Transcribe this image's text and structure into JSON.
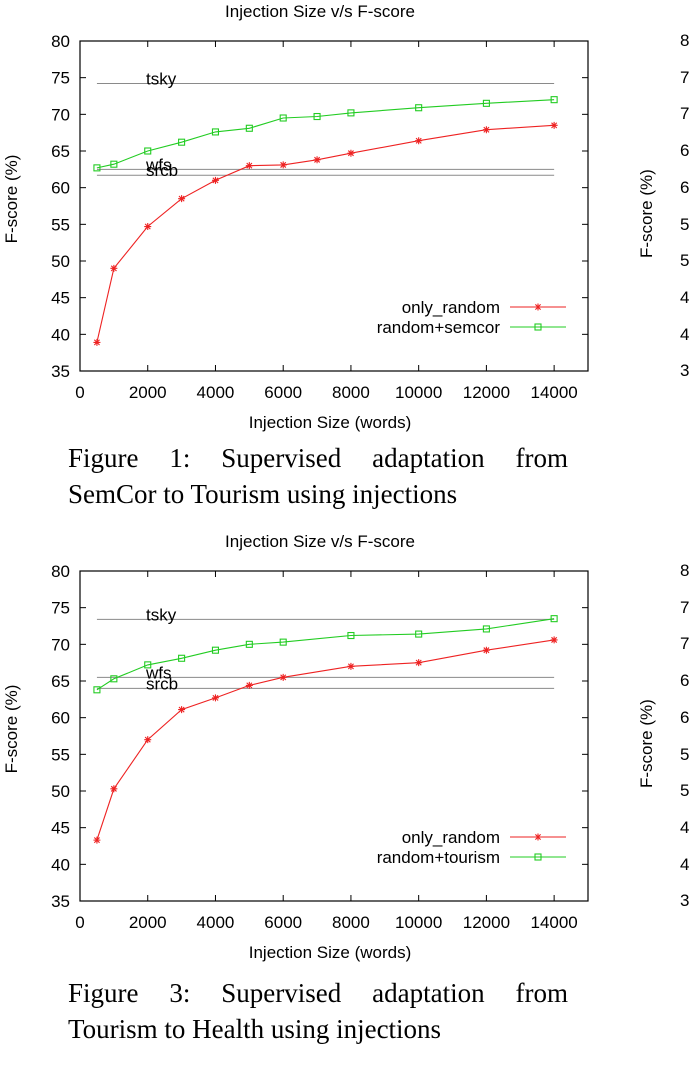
{
  "chart_data": [
    {
      "type": "line",
      "title": "Injection Size v/s F-score",
      "xlabel": "Injection Size (words)",
      "ylabel": "F-score (%)",
      "xlim": [
        0,
        15000
      ],
      "ylim": [
        35,
        80
      ],
      "xticks": [
        0,
        2000,
        4000,
        6000,
        8000,
        10000,
        12000,
        14000
      ],
      "yticks": [
        35,
        40,
        45,
        50,
        55,
        60,
        65,
        70,
        75,
        80
      ],
      "grid": false,
      "legend": "bottom-right",
      "baselines": [
        {
          "name": "tsky",
          "value": 74.2
        },
        {
          "name": "wfs",
          "value": 62.5
        },
        {
          "name": "srcb",
          "value": 61.7
        }
      ],
      "series": [
        {
          "name": "only_random",
          "color": "#ee2222",
          "marker": "star",
          "x": [
            500,
            1000,
            2000,
            3000,
            4000,
            5000,
            6000,
            7000,
            8000,
            10000,
            12000,
            14000
          ],
          "values": [
            38.9,
            49.0,
            54.7,
            58.5,
            61.0,
            63.0,
            63.1,
            63.8,
            64.7,
            66.4,
            67.9,
            68.5
          ]
        },
        {
          "name": "random+semcor",
          "color": "#22cc22",
          "marker": "square",
          "x": [
            500,
            1000,
            2000,
            3000,
            4000,
            5000,
            6000,
            7000,
            8000,
            10000,
            12000,
            14000
          ],
          "values": [
            62.7,
            63.2,
            65.0,
            66.2,
            67.6,
            68.1,
            69.5,
            69.7,
            70.2,
            70.9,
            71.5,
            72.0
          ]
        }
      ]
    },
    {
      "type": "line",
      "title": "Injection Size v/s F-score",
      "xlabel": "Injection Size (words)",
      "ylabel": "F-score (%)",
      "xlim": [
        0,
        15000
      ],
      "ylim": [
        35,
        80
      ],
      "xticks": [
        0,
        2000,
        4000,
        6000,
        8000,
        10000,
        12000,
        14000
      ],
      "yticks": [
        35,
        40,
        45,
        50,
        55,
        60,
        65,
        70,
        75,
        80
      ],
      "grid": false,
      "legend": "bottom-right",
      "baselines": [
        {
          "name": "tsky",
          "value": 73.4
        },
        {
          "name": "wfs",
          "value": 65.5
        },
        {
          "name": "srcb",
          "value": 64.0
        }
      ],
      "series": [
        {
          "name": "only_random",
          "color": "#ee2222",
          "marker": "star",
          "x": [
            500,
            1000,
            2000,
            3000,
            4000,
            5000,
            6000,
            8000,
            10000,
            12000,
            14000
          ],
          "values": [
            43.3,
            50.3,
            57.0,
            61.1,
            62.7,
            64.4,
            65.5,
            67.0,
            67.5,
            69.2,
            70.6
          ]
        },
        {
          "name": "random+tourism",
          "color": "#22cc22",
          "marker": "square",
          "x": [
            500,
            1000,
            2000,
            3000,
            4000,
            5000,
            6000,
            8000,
            10000,
            12000,
            14000
          ],
          "values": [
            63.8,
            65.3,
            67.2,
            68.1,
            69.2,
            70.0,
            70.3,
            71.2,
            71.4,
            72.1,
            73.5
          ]
        }
      ]
    }
  ],
  "captions": [
    {
      "line1": "Figure 1: Supervised adaptation from",
      "line2": "SemCor to Tourism using injections"
    },
    {
      "line1": "Figure 3: Supervised adaptation from",
      "line2": "Tourism to Health using injections"
    }
  ],
  "right_stub": {
    "ylabel": "F-score (%)",
    "ticks_top": [
      "8",
      "7",
      "7",
      "6",
      "6",
      "5",
      "5",
      "4",
      "4",
      "3"
    ],
    "ticks_bottom": [
      "8",
      "7",
      "7",
      "6",
      "6",
      "5",
      "5",
      "4",
      "4",
      "3"
    ]
  }
}
